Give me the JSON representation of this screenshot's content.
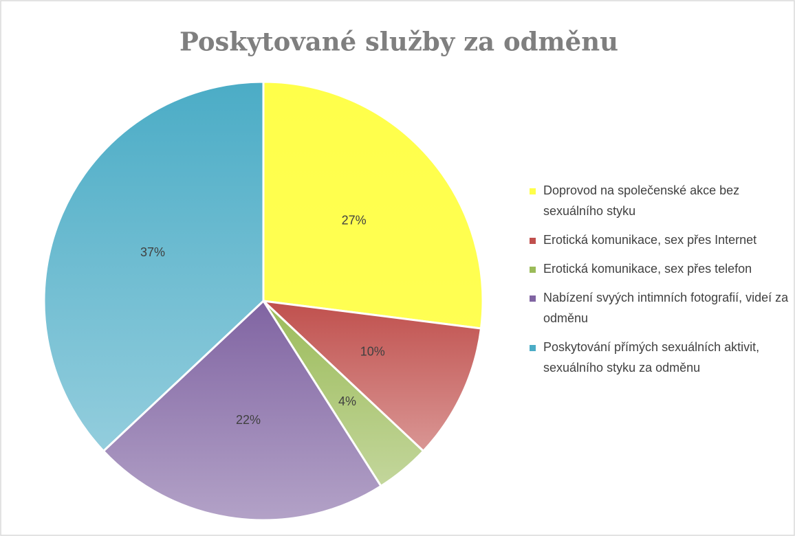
{
  "chart_data": {
    "type": "pie",
    "title": "Poskytované služby za odměnu",
    "categories": [
      "Doprovod na společenské akce bez sexuálního styku",
      "Erotická komunikace, sex přes Internet",
      "Erotická komunikace, sex přes telefon",
      "Nabízení svyých intimních fotografií, videí za odměnu",
      "Poskytování přímých sexuálních aktivit, sexuálního styku za odměnu"
    ],
    "values": [
      27,
      10,
      4,
      22,
      37
    ],
    "value_labels": [
      "27%",
      "10%",
      "4%",
      "22%",
      "37%"
    ],
    "colors": [
      "#ffff4a",
      "#c0504d",
      "#9bbb59",
      "#8064a2",
      "#4bacc6"
    ],
    "legend": "right"
  }
}
